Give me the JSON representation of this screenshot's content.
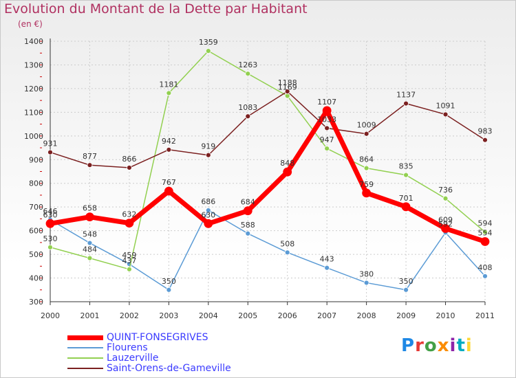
{
  "title": "Evolution du Montant de la Dette par Habitant",
  "subtitle": "(en €)",
  "logo": "Proxiti",
  "colors": {
    "title": "#b03060",
    "grid": "#cccccc",
    "legend_text": "#3a3aff"
  },
  "chart_data": {
    "type": "line",
    "title": "Evolution du Montant de la Dette par Habitant",
    "ylabel": "(en €)",
    "xlabel": "",
    "x": [
      "2000",
      "2001",
      "2002",
      "2003",
      "2004",
      "2005",
      "2006",
      "2007",
      "2008",
      "2009",
      "2010",
      "2011"
    ],
    "ylim": [
      300,
      1400
    ],
    "yticks": [
      300,
      400,
      500,
      600,
      700,
      800,
      900,
      1000,
      1100,
      1200,
      1300,
      1400
    ],
    "grid": true,
    "legend": "bottom-left",
    "series": [
      {
        "name": "QUINT-FONSEGRIVES",
        "color": "#ff0000",
        "values": [
          630,
          658,
          632,
          767,
          630,
          684,
          848,
          1107,
          759,
          701,
          609,
          554
        ]
      },
      {
        "name": "Flourens",
        "color": "#5b9bd5",
        "values": [
          646,
          548,
          459,
          350,
          686,
          588,
          508,
          443,
          380,
          350,
          592,
          408
        ]
      },
      {
        "name": "Lauzerville",
        "color": "#92d050",
        "values": [
          530,
          484,
          437,
          1181,
          1359,
          1263,
          1169,
          947,
          864,
          835,
          736,
          594
        ]
      },
      {
        "name": "Saint-Orens-de-Gameville",
        "color": "#7b2020",
        "values": [
          931,
          877,
          866,
          942,
          919,
          1083,
          1188,
          1033,
          1009,
          1137,
          1091,
          983
        ]
      }
    ]
  }
}
